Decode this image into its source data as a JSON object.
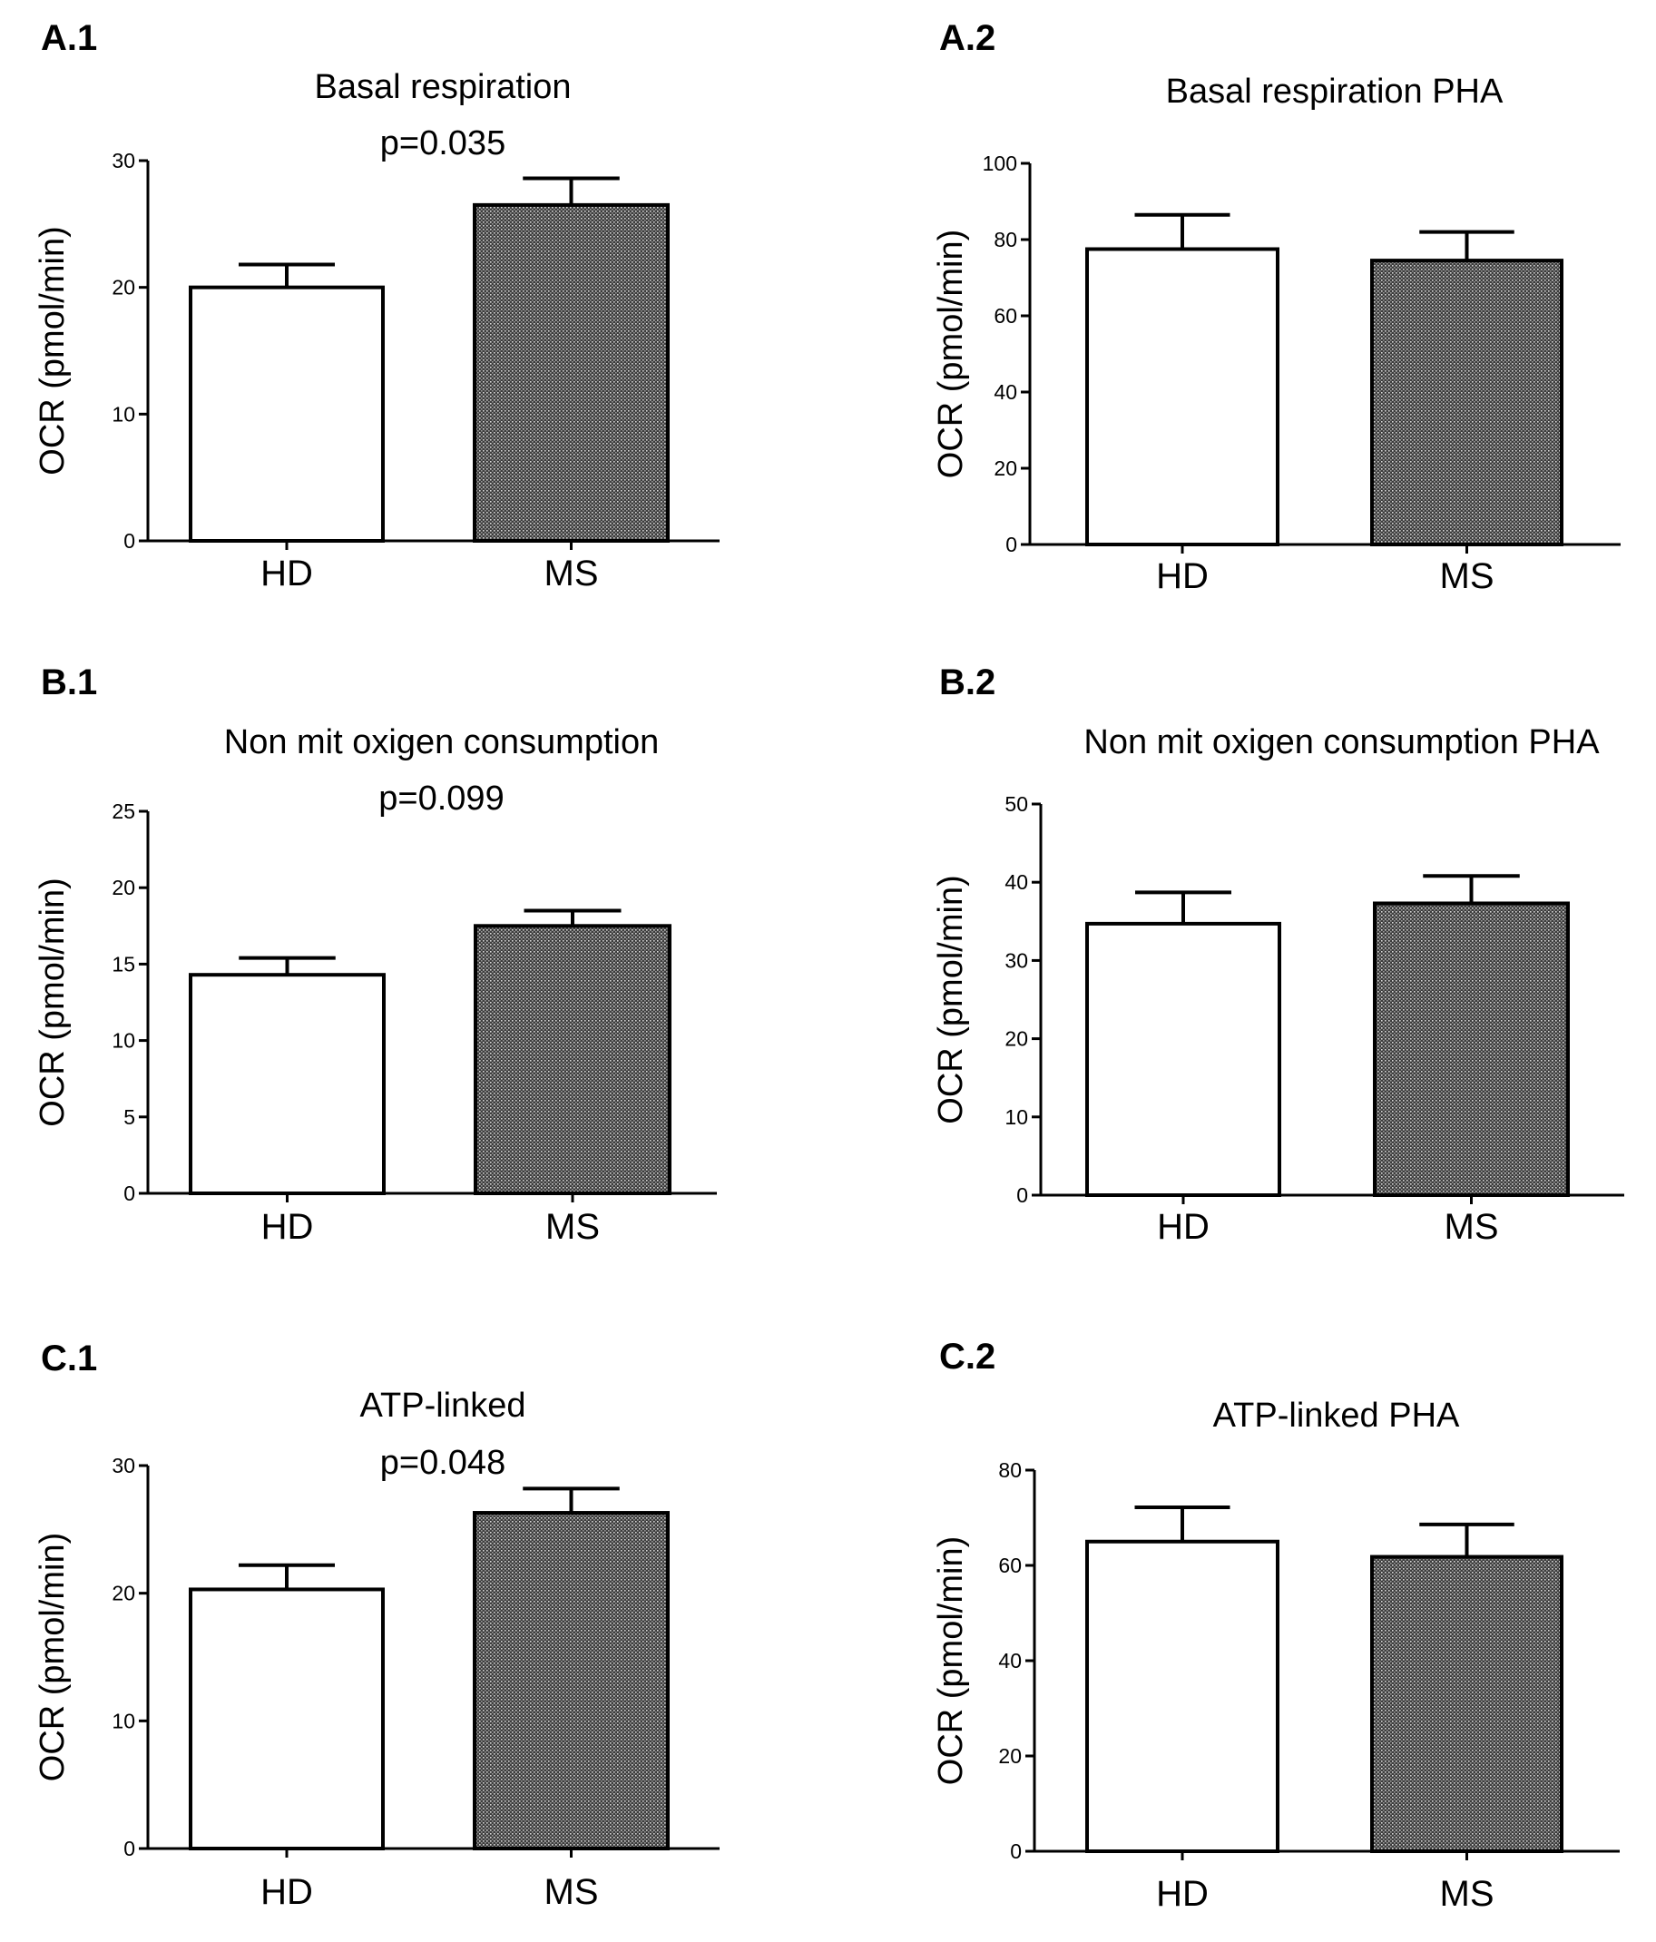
{
  "figure": {
    "colors": {
      "axis": "#000000",
      "hd_fill": "#ffffff",
      "ms_fill": "#3c3c3c",
      "ms_stripe": "#d8d8d8"
    }
  },
  "chart_data": [
    {
      "panel_label": "A.1",
      "type": "bar",
      "title": "Basal respiration",
      "annotation": "p=0.035",
      "ylabel": "OCR (pmol/min)",
      "xlabel": "",
      "categories": [
        "HD",
        "MS"
      ],
      "values": [
        20,
        26.5
      ],
      "errors": [
        1.8,
        2.1
      ],
      "ylim": [
        0,
        30
      ],
      "yticks": [
        "0",
        "10",
        "20",
        "30"
      ]
    },
    {
      "panel_label": "A.2",
      "type": "bar",
      "title": "Basal respiration PHA",
      "annotation": "",
      "ylabel": "OCR (pmol/min)",
      "xlabel": "",
      "categories": [
        "HD",
        "MS"
      ],
      "values": [
        77.5,
        74.5
      ],
      "errors": [
        9,
        7.5
      ],
      "ylim": [
        0,
        100
      ],
      "yticks": [
        "0",
        "20",
        "40",
        "60",
        "80",
        "100"
      ]
    },
    {
      "panel_label": "B.1",
      "type": "bar",
      "title": "Non mit oxigen consumption",
      "annotation": "p=0.099",
      "ylabel": "OCR (pmol/min)",
      "xlabel": "",
      "categories": [
        "HD",
        "MS"
      ],
      "values": [
        14.3,
        17.5
      ],
      "errors": [
        1.1,
        1.0
      ],
      "ylim": [
        0,
        25
      ],
      "yticks": [
        "0",
        "5",
        "10",
        "15",
        "20",
        "25"
      ]
    },
    {
      "panel_label": "B.2",
      "type": "bar",
      "title": "Non mit oxigen consumption PHA",
      "annotation": "",
      "ylabel": "OCR (pmol/min)",
      "xlabel": "",
      "categories": [
        "HD",
        "MS"
      ],
      "values": [
        34.7,
        37.3
      ],
      "errors": [
        4,
        3.5
      ],
      "ylim": [
        0,
        50
      ],
      "yticks": [
        "0",
        "10",
        "20",
        "30",
        "40",
        "50"
      ]
    },
    {
      "panel_label": "C.1",
      "type": "bar",
      "title": "ATP-linked",
      "annotation": "p=0.048",
      "ylabel": "OCR (pmol/min)",
      "xlabel": "",
      "categories": [
        "HD",
        "MS"
      ],
      "values": [
        20.3,
        26.3
      ],
      "errors": [
        1.9,
        1.9
      ],
      "ylim": [
        0,
        30
      ],
      "yticks": [
        "0",
        "10",
        "20",
        "30"
      ]
    },
    {
      "panel_label": "C.2",
      "type": "bar",
      "title": "ATP-linked PHA",
      "annotation": "",
      "ylabel": "OCR (pmol/min)",
      "xlabel": "",
      "categories": [
        "HD",
        "MS"
      ],
      "values": [
        65,
        61.8
      ],
      "errors": [
        7.2,
        6.8
      ],
      "ylim": [
        0,
        80
      ],
      "yticks": [
        "0",
        "20",
        "40",
        "60",
        "80"
      ]
    }
  ]
}
